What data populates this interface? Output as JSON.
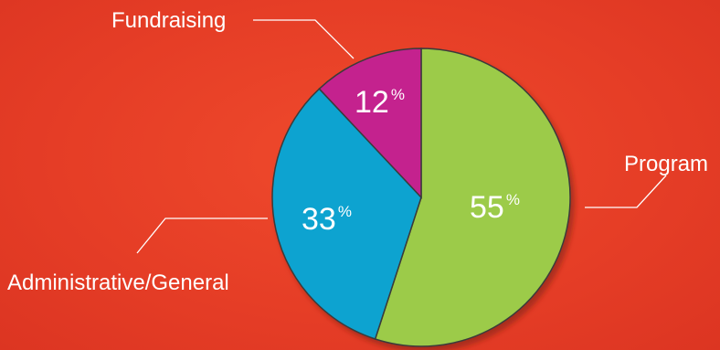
{
  "chart_data": {
    "type": "pie",
    "slices": [
      {
        "label": "Program",
        "value": 55,
        "color": "#9ccb48"
      },
      {
        "label": "Administrative/General",
        "value": 33,
        "color": "#0fa3d0"
      },
      {
        "label": "Fundraising",
        "value": 12,
        "color": "#c4238e"
      }
    ],
    "percent_symbol": "%",
    "legend": "callout labels around pie"
  }
}
